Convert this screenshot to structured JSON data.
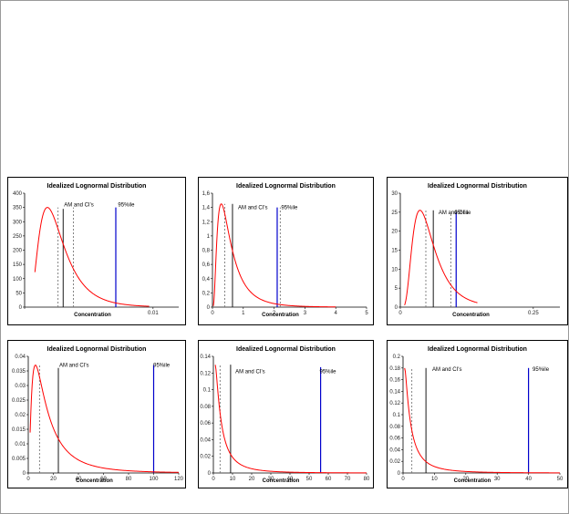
{
  "colors": {
    "curve": "#ff0000",
    "am_line": "#000000",
    "ci_line": "#777777",
    "p95_line": "#0000cc",
    "p95_ci_line": "#8888ff"
  },
  "chart_data": [
    {
      "type": "line",
      "title": "Idealized Lognormal Distribution",
      "xlabel": "Concentration",
      "ylabel": "",
      "xlim": [
        0,
        0.012
      ],
      "ylim": [
        0,
        400
      ],
      "xticks": [
        "",
        "0.01"
      ],
      "xtick_values": [
        0,
        0.01
      ],
      "yticks": [
        "0",
        "50",
        "100",
        "150",
        "200",
        "250",
        "300",
        "350",
        "400"
      ],
      "ytick_values": [
        0,
        50,
        100,
        150,
        200,
        250,
        300,
        350,
        400
      ],
      "curve": {
        "median": 0.0024,
        "sigma": 0.55,
        "peak": 350,
        "x_start": 0.0008,
        "x_end": 0.0097
      },
      "annotations": [
        {
          "text": "AM and CI's",
          "x": 0.003,
          "y": 360
        },
        {
          "text": "95%ile",
          "x": 0.0072,
          "y": 360
        }
      ],
      "vlines": [
        {
          "role": "ci",
          "x": 0.0026,
          "y_top": 350,
          "dashed": true
        },
        {
          "role": "am",
          "x": 0.003,
          "y_top": 345,
          "dashed": false
        },
        {
          "role": "ci",
          "x": 0.0038,
          "y_top": 350,
          "dashed": true
        },
        {
          "role": "p95",
          "x": 0.0071,
          "y_top": 350,
          "dashed": false
        }
      ]
    },
    {
      "type": "line",
      "title": "Idealized Lognormal Distribution",
      "xlabel": "Concentration",
      "ylabel": "",
      "xlim": [
        0,
        5
      ],
      "ylim": [
        0,
        1.6
      ],
      "xticks": [
        "0",
        "1",
        "2",
        "3",
        "4",
        "5"
      ],
      "xtick_values": [
        0,
        1,
        2,
        3,
        4,
        5
      ],
      "yticks": [
        "0",
        "0,2",
        "0,4",
        "0,6",
        "0,8",
        "1",
        "1,2",
        "1,4",
        "1,6"
      ],
      "ytick_values": [
        0,
        0.2,
        0.4,
        0.6,
        0.8,
        1.0,
        1.2,
        1.4,
        1.6
      ],
      "curve": {
        "median": 0.5,
        "sigma": 0.75,
        "peak": 1.45,
        "x_start": 0.03,
        "x_end": 4.0
      },
      "annotations": [
        {
          "text": "AM and CI's",
          "x": 0.8,
          "y": 1.4
        },
        {
          "text": "95%ile",
          "x": 2.2,
          "y": 1.4
        }
      ],
      "vlines": [
        {
          "role": "ci",
          "x": 0.4,
          "y_top": 1.45,
          "dashed": true
        },
        {
          "role": "am",
          "x": 0.65,
          "y_top": 1.45,
          "dashed": false
        },
        {
          "role": "p95",
          "x": 2.1,
          "y_top": 1.4,
          "dashed": false
        },
        {
          "role": "ci",
          "x": 2.2,
          "y_top": 1.4,
          "dashed": true
        }
      ]
    },
    {
      "type": "line",
      "title": "Idealized Lognormal Distribution",
      "xlabel": "Concentration",
      "ylabel": "",
      "xlim": [
        0,
        0.3
      ],
      "ylim": [
        0,
        30
      ],
      "xticks": [
        "0",
        "0.25"
      ],
      "xtick_values": [
        0,
        0.25
      ],
      "yticks": [
        "0",
        "5",
        "10",
        "15",
        "20",
        "25",
        "30"
      ],
      "ytick_values": [
        0,
        5,
        10,
        15,
        20,
        25,
        30
      ],
      "curve": {
        "median": 0.05,
        "sigma": 0.55,
        "peak": 25.5,
        "x_start": 0.008,
        "x_end": 0.145
      },
      "annotations": [
        {
          "text": "AM and CI's",
          "x": 0.07,
          "y": 25
        },
        {
          "text": "95%ile",
          "x": 0.1,
          "y": 25
        }
      ],
      "vlines": [
        {
          "role": "ci",
          "x": 0.048,
          "y_top": 25.5,
          "dashed": true
        },
        {
          "role": "am",
          "x": 0.062,
          "y_top": 25.5,
          "dashed": false
        },
        {
          "role": "ci",
          "x": 0.095,
          "y_top": 25,
          "dashed": true
        },
        {
          "role": "p95",
          "x": 0.105,
          "y_top": 25,
          "dashed": false
        }
      ]
    },
    {
      "type": "line",
      "title": "Idealized Lognormal Distribution",
      "xlabel": "Concentration",
      "ylabel": "",
      "xlim": [
        0,
        120
      ],
      "ylim": [
        0,
        0.04
      ],
      "xticks": [
        "0",
        "20",
        "40",
        "60",
        "80",
        "100",
        "120"
      ],
      "xtick_values": [
        0,
        20,
        40,
        60,
        80,
        100,
        120
      ],
      "yticks": [
        "0",
        "0.005",
        "0.01",
        "0.015",
        "0.02",
        "0.025",
        "0.03",
        "0.035",
        "0.04"
      ],
      "ytick_values": [
        0,
        0.005,
        0.01,
        0.015,
        0.02,
        0.025,
        0.03,
        0.035,
        0.04
      ],
      "curve": {
        "median": 14,
        "sigma": 0.95,
        "peak": 0.037,
        "x_start": 1.5,
        "x_end": 120
      },
      "annotations": [
        {
          "text": "AM and CI's",
          "x": 24,
          "y": 0.037
        },
        {
          "text": "95%ile",
          "x": 99,
          "y": 0.037
        }
      ],
      "vlines": [
        {
          "role": "ci",
          "x": 9,
          "y_top": 0.037,
          "dashed": true
        },
        {
          "role": "am",
          "x": 24,
          "y_top": 0.036,
          "dashed": false
        },
        {
          "role": "p95",
          "x": 100,
          "y_top": 0.037,
          "dashed": false
        }
      ]
    },
    {
      "type": "line",
      "title": "Idealized Lognormal Distribution",
      "xlabel": "Concentration",
      "ylabel": "",
      "xlim": [
        0,
        80
      ],
      "ylim": [
        0,
        0.14
      ],
      "xticks": [
        "0",
        "10",
        "20",
        "30",
        "40",
        "50",
        "60",
        "70",
        "80"
      ],
      "xtick_values": [
        0,
        10,
        20,
        30,
        40,
        50,
        60,
        70,
        80
      ],
      "yticks": [
        "0",
        "0.02",
        "0.04",
        "0.06",
        "0.08",
        "0.1",
        "0.12",
        "0.14"
      ],
      "ytick_values": [
        0,
        0.02,
        0.04,
        0.06,
        0.08,
        0.1,
        0.12,
        0.14
      ],
      "curve": {
        "median": 4,
        "sigma": 1.2,
        "peak": 0.13,
        "x_start": 1.0,
        "x_end": 80
      },
      "annotations": [
        {
          "text": "AM and CI's",
          "x": 11,
          "y": 0.122
        },
        {
          "text": "95%ile",
          "x": 55,
          "y": 0.122
        }
      ],
      "vlines": [
        {
          "role": "ci",
          "x": 3.5,
          "y_top": 0.13,
          "dashed": true
        },
        {
          "role": "am",
          "x": 9,
          "y_top": 0.13,
          "dashed": false
        },
        {
          "role": "p95",
          "x": 56,
          "y_top": 0.127,
          "dashed": false
        }
      ]
    },
    {
      "type": "line",
      "title": "Idealized Lognormal Distribution",
      "xlabel": "Concentration",
      "ylabel": "",
      "xlim": [
        0,
        50
      ],
      "ylim": [
        0,
        0.2
      ],
      "xticks": [
        "0",
        "10",
        "20",
        "30",
        "40",
        "50"
      ],
      "xtick_values": [
        0,
        10,
        20,
        30,
        40,
        50
      ],
      "yticks": [
        "0",
        "0.02",
        "0.04",
        "0.06",
        "0.08",
        "0.1",
        "0.12",
        "0.14",
        "0.16",
        "0.18",
        "0.2"
      ],
      "ytick_values": [
        0,
        0.02,
        0.04,
        0.06,
        0.08,
        0.1,
        0.12,
        0.14,
        0.16,
        0.18,
        0.2
      ],
      "curve": {
        "median": 2.5,
        "sigma": 1.25,
        "peak": 0.18,
        "x_start": 0.5,
        "x_end": 50
      },
      "annotations": [
        {
          "text": "AM and CI's",
          "x": 9,
          "y": 0.178
        },
        {
          "text": "95%ile",
          "x": 41,
          "y": 0.178
        }
      ],
      "vlines": [
        {
          "role": "ci",
          "x": 2.8,
          "y_top": 0.18,
          "dashed": true
        },
        {
          "role": "am",
          "x": 7.3,
          "y_top": 0.18,
          "dashed": false
        },
        {
          "role": "p95",
          "x": 40,
          "y_top": 0.18,
          "dashed": false
        }
      ]
    }
  ]
}
